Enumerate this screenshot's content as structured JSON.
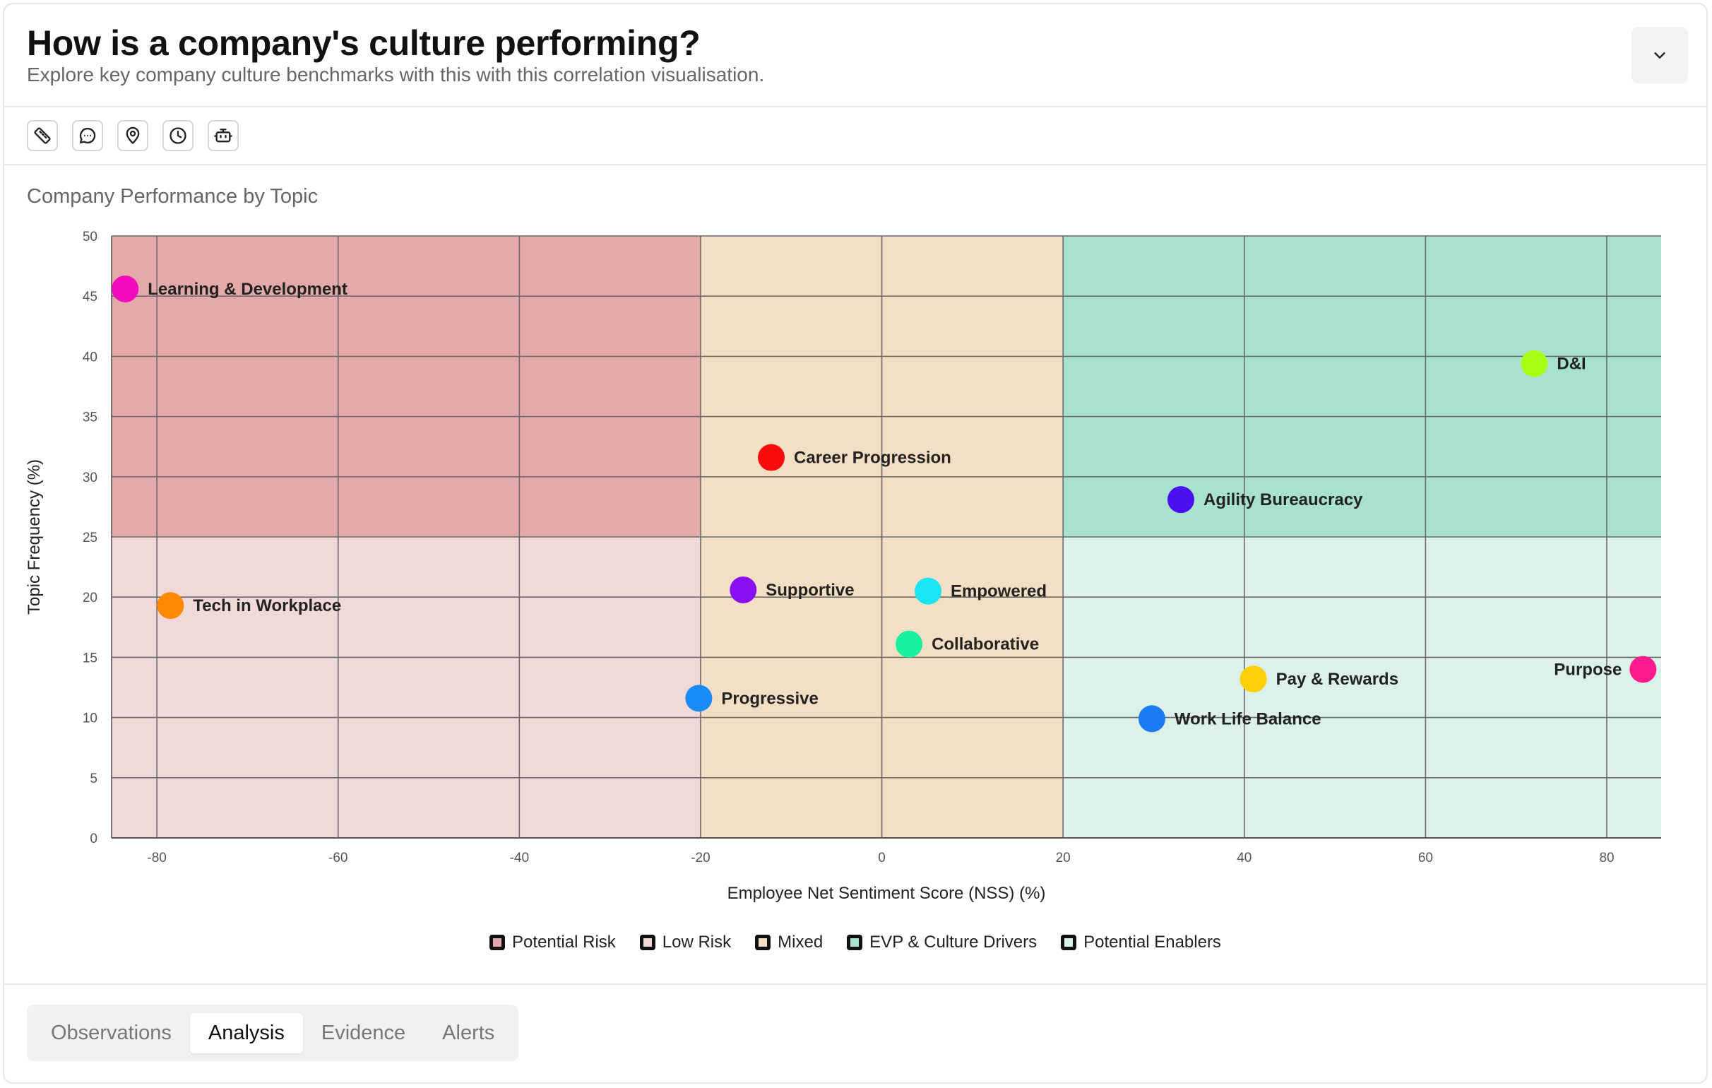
{
  "header": {
    "title": "How is a company's culture performing?",
    "subtitle": "Explore key company culture benchmarks with this with this correlation visualisation."
  },
  "toolbar": {
    "icons": [
      "ruler-icon",
      "chat-icon",
      "location-pin-icon",
      "clock-icon",
      "robot-icon"
    ]
  },
  "chart_title": "Company Performance by Topic",
  "tabs": [
    "Observations",
    "Analysis",
    "Evidence",
    "Alerts"
  ],
  "active_tab": "Analysis",
  "chart_data": {
    "type": "scatter",
    "title": "Company Performance by Topic",
    "xlabel": "Employee Net Sentiment Score (NSS) (%)",
    "ylabel": "Topic Frequency (%)",
    "xlim": [
      -85,
      86
    ],
    "ylim": [
      0,
      50
    ],
    "xticks": [
      -80,
      -60,
      -40,
      -20,
      0,
      20,
      40,
      60,
      80
    ],
    "yticks": [
      0,
      5,
      10,
      15,
      20,
      25,
      30,
      35,
      40,
      45,
      50
    ],
    "grid": true,
    "legend_placement": "bottom-center",
    "regions": [
      {
        "name": "Potential Risk",
        "x": [
          -85,
          -20
        ],
        "y": [
          25,
          50
        ],
        "color": "#e3aaa9"
      },
      {
        "name": "Low Risk",
        "x": [
          -85,
          -20
        ],
        "y": [
          0,
          25
        ],
        "color": "#f2d8d9"
      },
      {
        "name": "Mixed",
        "x": [
          -20,
          20
        ],
        "y": [
          0,
          50
        ],
        "color": "#f5dfc4"
      },
      {
        "name": "EVP & Culture Drivers",
        "x": [
          20,
          86
        ],
        "y": [
          25,
          50
        ],
        "color": "#a8e2cf"
      },
      {
        "name": "Potential Enablers",
        "x": [
          20,
          86
        ],
        "y": [
          0,
          25
        ],
        "color": "#dcf1e9"
      }
    ],
    "points": [
      {
        "label": "Learning & Development",
        "x": -83.5,
        "y": 45.6,
        "color": "#f20cbe",
        "label_side": "right"
      },
      {
        "label": "D&I",
        "x": 72.0,
        "y": 39.4,
        "color": "#a6ff12",
        "label_side": "right"
      },
      {
        "label": "Career Progression",
        "x": -12.2,
        "y": 31.6,
        "color": "#ff0a0a",
        "label_side": "right"
      },
      {
        "label": "Agility Bureaucracy",
        "x": 33.0,
        "y": 28.1,
        "color": "#4c10f0",
        "label_side": "right"
      },
      {
        "label": "Tech in Workplace",
        "x": -78.5,
        "y": 19.3,
        "color": "#ff8a00",
        "label_side": "right"
      },
      {
        "label": "Supportive",
        "x": -15.3,
        "y": 20.6,
        "color": "#8a10f2",
        "label_side": "right"
      },
      {
        "label": "Empowered",
        "x": 5.1,
        "y": 20.5,
        "color": "#19e5f5",
        "label_side": "right"
      },
      {
        "label": "Collaborative",
        "x": 3.0,
        "y": 16.1,
        "color": "#1af0a0",
        "label_side": "right"
      },
      {
        "label": "Progressive",
        "x": -20.2,
        "y": 11.6,
        "color": "#1a8cf7",
        "label_side": "right"
      },
      {
        "label": "Pay & Rewards",
        "x": 41.0,
        "y": 13.2,
        "color": "#ffd00a",
        "label_side": "right"
      },
      {
        "label": "Work Life Balance",
        "x": 29.8,
        "y": 9.9,
        "color": "#1a7cf0",
        "label_side": "right"
      },
      {
        "label": "Purpose",
        "x": 84.0,
        "y": 14.0,
        "color": "#ff1a8c",
        "label_side": "left"
      }
    ]
  }
}
